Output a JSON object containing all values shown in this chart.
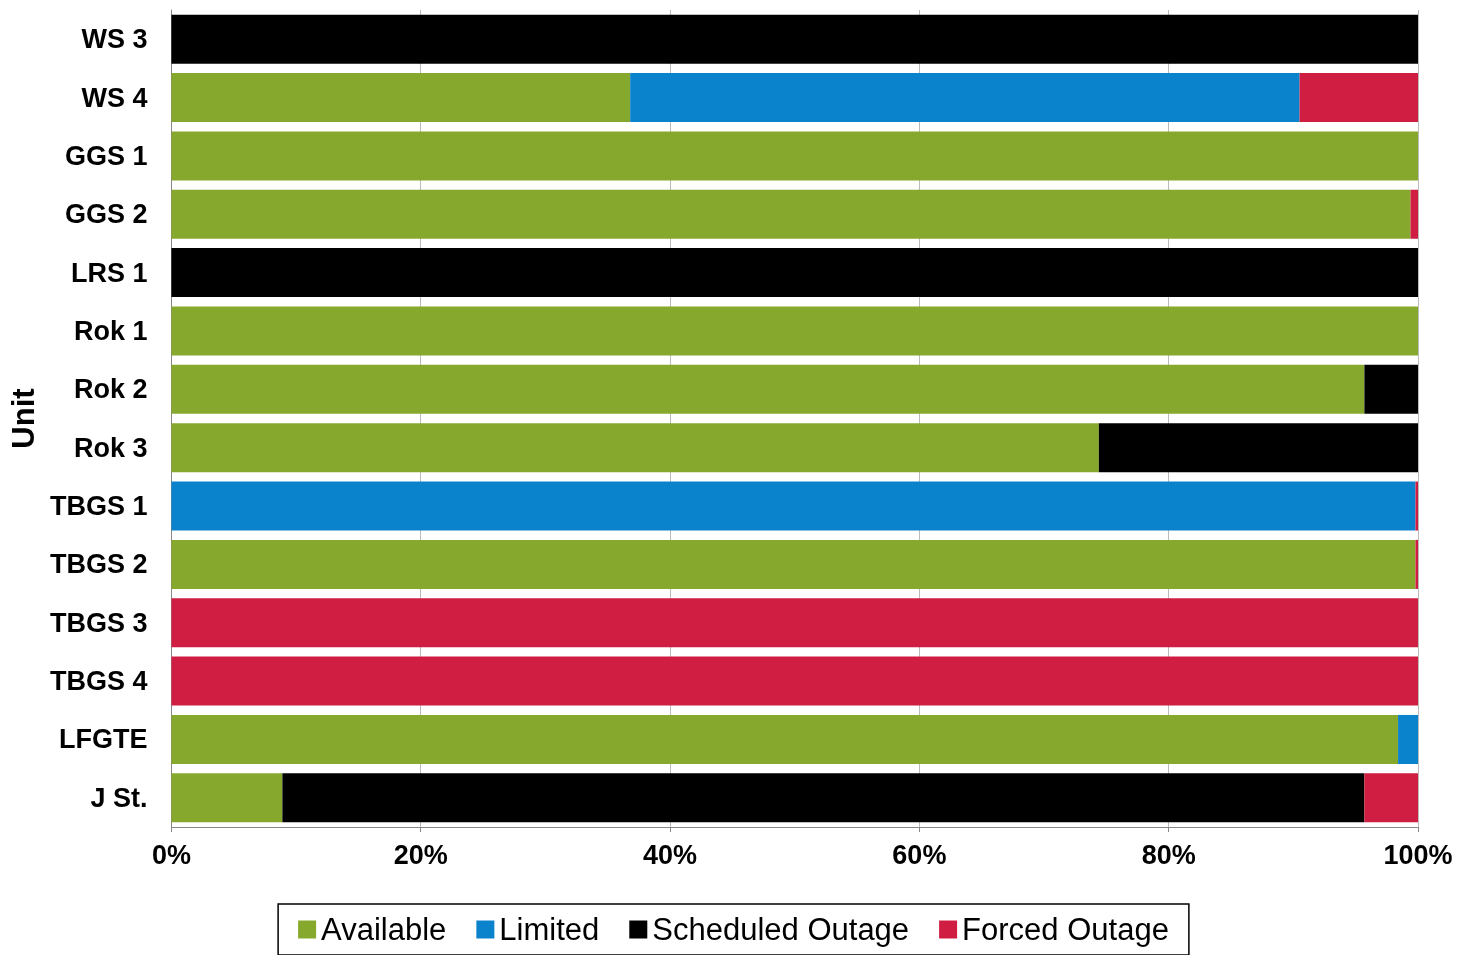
{
  "chart_data": {
    "type": "bar",
    "orientation": "horizontal",
    "stacked": true,
    "ylabel": "Unit",
    "categories": [
      "WS 3",
      "WS 4",
      "GGS 1",
      "GGS 2",
      "LRS 1",
      "Rok 1",
      "Rok 2",
      "Rok 3",
      "TBGS 1",
      "TBGS 2",
      "TBGS 3",
      "TBGS 4",
      "LFGTE",
      "J St."
    ],
    "series": [
      {
        "name": "Available",
        "color": "#86a82c",
        "values": [
          0,
          36.8,
          100,
          99.4,
          0,
          100,
          95.7,
          74.4,
          0,
          99.8,
          0,
          0,
          98.4,
          8.9
        ]
      },
      {
        "name": "Limited",
        "color": "#0a82cc",
        "values": [
          0,
          53.7,
          0,
          0,
          0,
          0,
          0,
          0,
          99.8,
          0,
          0,
          0,
          1.6,
          0
        ]
      },
      {
        "name": "Scheduled Outage",
        "color": "#000000",
        "values": [
          100,
          0,
          0,
          0,
          100,
          0,
          4.3,
          25.6,
          0,
          0,
          0,
          0,
          0,
          86.8
        ]
      },
      {
        "name": "Forced Outage",
        "color": "#d01e42",
        "values": [
          0,
          9.5,
          0,
          0.6,
          0,
          0,
          0,
          0,
          0.2,
          0.2,
          100,
          100,
          0,
          4.3
        ]
      }
    ],
    "xlim": [
      0,
      100
    ],
    "xticks": [
      {
        "value": 0,
        "label": "0%"
      },
      {
        "value": 20,
        "label": "20%"
      },
      {
        "value": 40,
        "label": "40%"
      },
      {
        "value": 60,
        "label": "60%"
      },
      {
        "value": 80,
        "label": "80%"
      },
      {
        "value": 100,
        "label": "100%"
      }
    ],
    "grid": "x",
    "legend": "bottom"
  }
}
